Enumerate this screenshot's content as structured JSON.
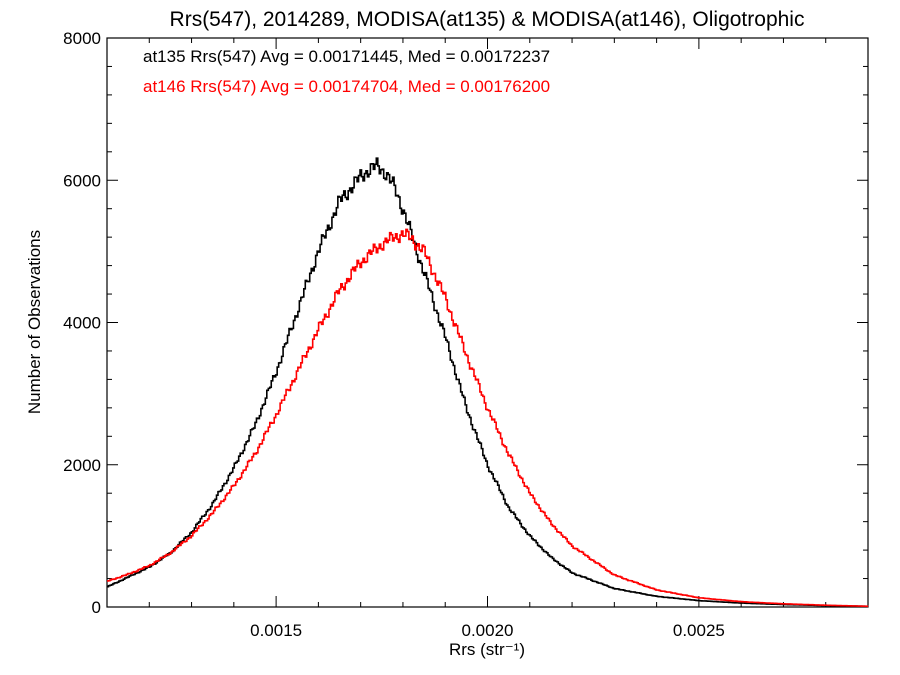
{
  "chart_data": {
    "type": "line",
    "title": "Rrs(547), 2014289, MODISA(at135) & MODISA(at146), Oligotrophic",
    "xlabel": "Rrs (str⁻¹)",
    "ylabel": "Number of Observations",
    "xlim": [
      0.0011,
      0.0029
    ],
    "ylim": [
      0,
      8000
    ],
    "x_ticks": [
      0.0015,
      0.002,
      0.0025
    ],
    "x_tick_labels": [
      "0.0015",
      "0.0020",
      "0.0025"
    ],
    "y_ticks": [
      0,
      2000,
      4000,
      6000,
      8000
    ],
    "y_tick_labels": [
      "0",
      "2000",
      "4000",
      "6000",
      "8000"
    ],
    "grid": false,
    "legend_position": "top-left",
    "annotations": [
      {
        "text": "at135 Rrs(547) Avg = 0.00171445, Med = 0.00172237",
        "color": "#000000"
      },
      {
        "text": "at146 Rrs(547) Avg = 0.00174704, Med = 0.00176200",
        "color": "#ff0000"
      }
    ],
    "series": [
      {
        "color": "#000000",
        "x": [
          0.0011,
          0.00115,
          0.0012,
          0.00125,
          0.0013,
          0.00135,
          0.0014,
          0.00145,
          0.0015,
          0.00155,
          0.0016,
          0.00165,
          0.0017,
          0.00172,
          0.00174,
          0.00176,
          0.00178,
          0.0018,
          0.00185,
          0.0019,
          0.00195,
          0.002,
          0.00205,
          0.0021,
          0.00215,
          0.0022,
          0.0023,
          0.0024,
          0.0025,
          0.0026,
          0.0027,
          0.0028,
          0.0029
        ],
        "y": [
          280,
          420,
          560,
          760,
          1050,
          1450,
          1950,
          2550,
          3300,
          4150,
          5000,
          5700,
          6050,
          6150,
          6200,
          6100,
          5900,
          5600,
          4700,
          3800,
          2800,
          2000,
          1400,
          1000,
          700,
          480,
          260,
          150,
          90,
          55,
          35,
          20,
          10
        ]
      },
      {
        "color": "#ff0000",
        "x": [
          0.0011,
          0.00115,
          0.0012,
          0.00125,
          0.0013,
          0.00135,
          0.0014,
          0.00145,
          0.0015,
          0.00155,
          0.0016,
          0.00165,
          0.0017,
          0.00175,
          0.00178,
          0.0018,
          0.00182,
          0.00185,
          0.0019,
          0.00195,
          0.002,
          0.00205,
          0.0021,
          0.00215,
          0.0022,
          0.0023,
          0.0024,
          0.0025,
          0.0026,
          0.0027,
          0.0028,
          0.0029
        ],
        "y": [
          360,
          460,
          580,
          760,
          1000,
          1320,
          1700,
          2150,
          2700,
          3300,
          3900,
          4450,
          4850,
          5100,
          5200,
          5250,
          5180,
          5000,
          4350,
          3550,
          2800,
          2150,
          1600,
          1180,
          860,
          450,
          240,
          130,
          75,
          45,
          25,
          10
        ]
      }
    ]
  }
}
